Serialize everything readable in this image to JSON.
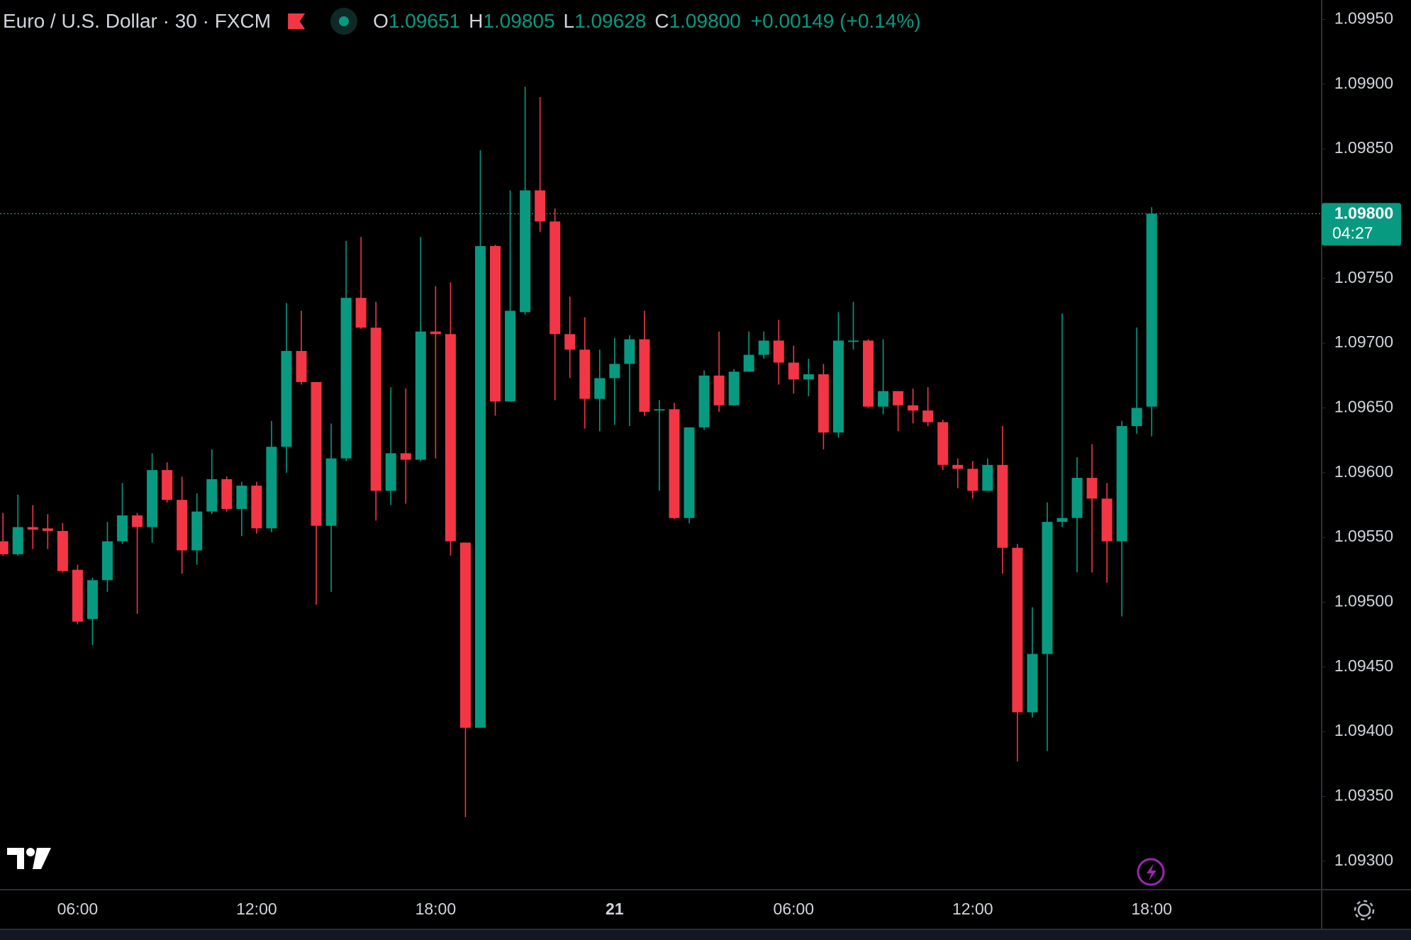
{
  "chart_data": {
    "type": "candlestick",
    "title": "Euro / U.S. Dollar · 30 · FXCM",
    "ohlc_labels": [
      "O",
      "H",
      "L",
      "C"
    ],
    "ohlc_values": [
      "1.09651",
      "1.09805",
      "1.09628",
      "1.09800"
    ],
    "change": "+0.00149 (+0.14%)",
    "last_price_label": "1.09800",
    "countdown": "04:27",
    "up_color": "#089981",
    "down_color": "#f23645",
    "categories": [
      null,
      null,
      null,
      null,
      null,
      "06:00",
      null,
      null,
      null,
      null,
      null,
      null,
      null,
      null,
      null,
      null,
      null,
      "12:00",
      null,
      null,
      null,
      null,
      null,
      null,
      null,
      null,
      null,
      null,
      null,
      "18:00",
      null,
      null,
      null,
      null,
      null,
      null,
      null,
      null,
      null,
      null,
      null,
      "21",
      null,
      null,
      null,
      null,
      null,
      null,
      null,
      null,
      null,
      null,
      null,
      "06:00",
      null,
      null,
      null,
      null,
      null,
      null,
      null,
      null,
      null,
      null,
      null,
      "12:00",
      null,
      null,
      null,
      null,
      null,
      null,
      null,
      null,
      null,
      null,
      null,
      "18:00"
    ],
    "open": [
      1.09547,
      1.09537,
      1.09558,
      1.09557,
      1.09555,
      1.09525,
      1.09487,
      1.09517,
      1.09547,
      1.09567,
      1.09558,
      1.09602,
      1.09579,
      1.0954,
      1.0957,
      1.09595,
      1.09572,
      1.0959,
      1.09557,
      1.0962,
      1.09694,
      1.0967,
      1.09559,
      1.09611,
      1.09735,
      1.09712,
      1.09586,
      1.09615,
      1.0961,
      1.09709,
      1.09707,
      1.09546,
      1.09403,
      1.09775,
      1.09655,
      1.09724,
      1.09818,
      1.09794,
      1.09707,
      1.09695,
      1.09657,
      1.09673,
      1.09684,
      1.09703,
      1.09648,
      1.09649,
      1.09565,
      1.09635,
      1.09675,
      1.09652,
      1.09678,
      1.09691,
      1.09702,
      1.09685,
      1.09672,
      1.09676,
      1.09631,
      1.09701,
      1.09702,
      1.09651,
      1.09663,
      1.09652,
      1.09648,
      1.09639,
      1.09606,
      1.09603,
      1.09586,
      1.09606,
      1.09542,
      1.09415,
      1.0946,
      1.09562,
      1.09565,
      1.09596,
      1.0958,
      1.09547,
      1.09636,
      1.09651
    ],
    "high": [
      1.09569,
      1.09583,
      1.09575,
      1.09568,
      1.09561,
      1.09529,
      1.09519,
      1.09562,
      1.09592,
      1.09569,
      1.09615,
      1.09608,
      1.09597,
      1.09584,
      1.09618,
      1.09597,
      1.09593,
      1.09593,
      1.0964,
      1.09731,
      1.09725,
      1.0967,
      1.09638,
      1.09779,
      1.09782,
      1.09732,
      1.09666,
      1.09665,
      1.09782,
      1.09744,
      1.09747,
      1.09546,
      1.09849,
      1.09776,
      1.09818,
      1.09898,
      1.0989,
      1.09804,
      1.09736,
      1.0972,
      1.09695,
      1.09704,
      1.09706,
      1.09725,
      1.09656,
      1.09654,
      1.09635,
      1.09679,
      1.09709,
      1.0968,
      1.09709,
      1.09709,
      1.09718,
      1.09698,
      1.09688,
      1.09684,
      1.09724,
      1.09732,
      1.09703,
      1.09703,
      1.09663,
      1.09665,
      1.09666,
      1.09641,
      1.09611,
      1.09609,
      1.09611,
      1.09636,
      1.09545,
      1.09496,
      1.09577,
      1.09723,
      1.09612,
      1.09622,
      1.09592,
      1.0964,
      1.09712,
      1.09805
    ],
    "low": [
      1.09536,
      1.09536,
      1.09541,
      1.09541,
      1.09523,
      1.09483,
      1.09467,
      1.09508,
      1.09545,
      1.09491,
      1.09546,
      1.09577,
      1.09522,
      1.09529,
      1.09568,
      1.0957,
      1.09551,
      1.09553,
      1.09554,
      1.096,
      1.09668,
      1.09498,
      1.09508,
      1.09609,
      1.09711,
      1.09563,
      1.09575,
      1.09576,
      1.09609,
      1.09611,
      1.09536,
      1.09334,
      1.09403,
      1.09644,
      1.09655,
      1.09722,
      1.09786,
      1.09656,
      1.09673,
      1.09634,
      1.09632,
      1.09637,
      1.09636,
      1.09644,
      1.09586,
      1.09564,
      1.09561,
      1.09633,
      1.09647,
      1.09652,
      1.09678,
      1.09688,
      1.09668,
      1.09661,
      1.09659,
      1.09618,
      1.09627,
      1.09695,
      1.0965,
      1.09645,
      1.09632,
      1.09638,
      1.09636,
      1.09602,
      1.09588,
      1.0958,
      1.09586,
      1.09522,
      1.09377,
      1.09411,
      1.09385,
      1.09558,
      1.09523,
      1.09523,
      1.09515,
      1.09489,
      1.0963,
      1.09628
    ],
    "close": [
      1.09537,
      1.09558,
      1.09556,
      1.09555,
      1.09524,
      1.09485,
      1.09517,
      1.09547,
      1.09567,
      1.09558,
      1.09602,
      1.09579,
      1.0954,
      1.0957,
      1.09595,
      1.09572,
      1.0959,
      1.09557,
      1.0962,
      1.09694,
      1.0967,
      1.09559,
      1.09611,
      1.09735,
      1.09712,
      1.09586,
      1.09615,
      1.0961,
      1.09709,
      1.09707,
      1.09547,
      1.09403,
      1.09775,
      1.09655,
      1.09725,
      1.09818,
      1.09794,
      1.09707,
      1.09695,
      1.09657,
      1.09673,
      1.09684,
      1.09703,
      1.09647,
      1.09649,
      1.09565,
      1.09635,
      1.09675,
      1.09652,
      1.09678,
      1.09691,
      1.09702,
      1.09685,
      1.09672,
      1.09676,
      1.09631,
      1.09702,
      1.09702,
      1.09651,
      1.09663,
      1.09652,
      1.09648,
      1.09639,
      1.09606,
      1.09603,
      1.09586,
      1.09606,
      1.09542,
      1.09415,
      1.0946,
      1.09562,
      1.09565,
      1.09596,
      1.0958,
      1.09547,
      1.09636,
      1.0965,
      1.098
    ],
    "ylim": [
      1.09278,
      1.09965
    ],
    "yticks": [
      {
        "value": 1.0995,
        "label": "1.09950"
      },
      {
        "value": 1.099,
        "label": "1.09900"
      },
      {
        "value": 1.0985,
        "label": "1.09850"
      },
      {
        "value": 1.098,
        "label": "1.09800"
      },
      {
        "value": 1.0975,
        "label": "1.09750"
      },
      {
        "value": 1.097,
        "label": "1.09700"
      },
      {
        "value": 1.0965,
        "label": "1.09650"
      },
      {
        "value": 1.096,
        "label": "1.09600"
      },
      {
        "value": 1.0955,
        "label": "1.09550"
      },
      {
        "value": 1.095,
        "label": "1.09500"
      },
      {
        "value": 1.0945,
        "label": "1.09450"
      },
      {
        "value": 1.094,
        "label": "1.09400"
      },
      {
        "value": 1.0935,
        "label": "1.09350"
      },
      {
        "value": 1.093,
        "label": "1.09300"
      }
    ]
  }
}
